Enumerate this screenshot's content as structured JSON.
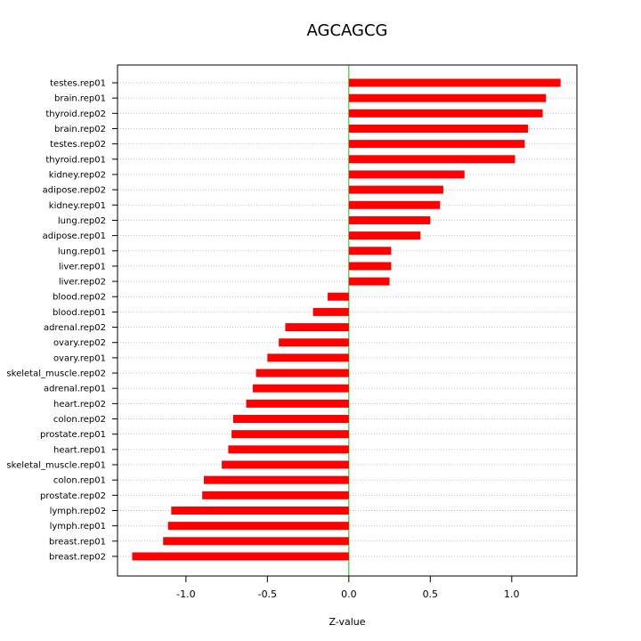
{
  "chart_data": {
    "type": "bar",
    "orientation": "horizontal",
    "title": "AGCAGCG",
    "xlabel": "Z-value",
    "ylabel": "",
    "xlim": [
      -1.42,
      1.4
    ],
    "xticks": [
      -1.0,
      -0.5,
      0.0,
      0.5,
      1.0
    ],
    "xtick_labels": [
      "-1.0",
      "-0.5",
      "0.0",
      "0.5",
      "1.0"
    ],
    "grid": "horizontal dotted",
    "bar_color": "#ff0000",
    "zero_line_color": "#00cc00",
    "grid_color": "#c0c0c0",
    "categories": [
      "testes.rep01",
      "brain.rep01",
      "thyroid.rep02",
      "brain.rep02",
      "testes.rep02",
      "thyroid.rep01",
      "kidney.rep02",
      "adipose.rep02",
      "kidney.rep01",
      "lung.rep02",
      "adipose.rep01",
      "lung.rep01",
      "liver.rep01",
      "liver.rep02",
      "blood.rep02",
      "blood.rep01",
      "adrenal.rep02",
      "ovary.rep02",
      "ovary.rep01",
      "skeletal_muscle.rep02",
      "adrenal.rep01",
      "heart.rep02",
      "colon.rep02",
      "prostate.rep01",
      "heart.rep01",
      "skeletal_muscle.rep01",
      "colon.rep01",
      "prostate.rep02",
      "lymph.rep02",
      "lymph.rep01",
      "breast.rep01",
      "breast.rep02"
    ],
    "values": [
      1.3,
      1.21,
      1.19,
      1.1,
      1.08,
      1.02,
      0.71,
      0.58,
      0.56,
      0.5,
      0.44,
      0.26,
      0.26,
      0.25,
      -0.13,
      -0.22,
      -0.39,
      -0.43,
      -0.5,
      -0.57,
      -0.59,
      -0.63,
      -0.71,
      -0.72,
      -0.74,
      -0.78,
      -0.89,
      -0.9,
      -1.09,
      -1.11,
      -1.14,
      -1.33
    ]
  }
}
